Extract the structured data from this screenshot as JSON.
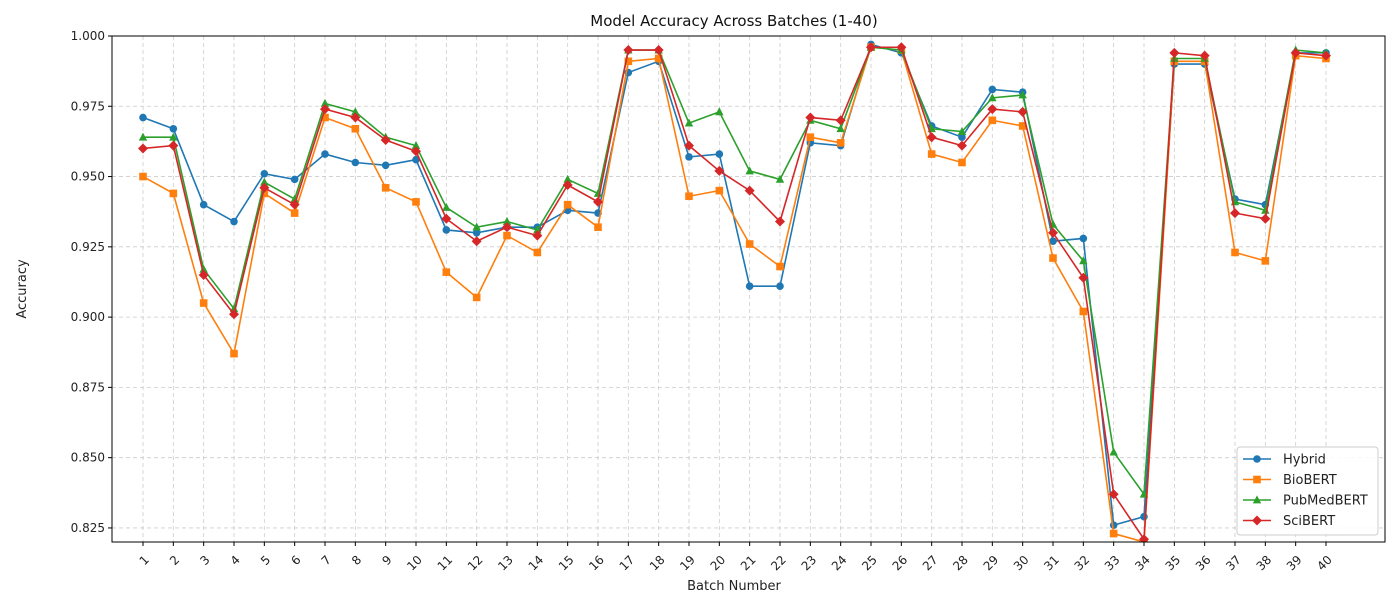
{
  "chart_data": {
    "type": "line",
    "title": "Model Accuracy Across Batches (1-40)",
    "xlabel": "Batch Number",
    "ylabel": "Accuracy",
    "categories": [
      "1",
      "2",
      "3",
      "4",
      "5",
      "6",
      "7",
      "8",
      "9",
      "10",
      "11",
      "12",
      "13",
      "14",
      "15",
      "16",
      "17",
      "18",
      "19",
      "20",
      "21",
      "22",
      "23",
      "24",
      "25",
      "26",
      "27",
      "28",
      "29",
      "30",
      "31",
      "32",
      "33",
      "34",
      "35",
      "36",
      "37",
      "38",
      "39",
      "40"
    ],
    "ylim": [
      0.82,
      1.0
    ],
    "yticks": [
      "0.825",
      "0.850",
      "0.875",
      "0.900",
      "0.925",
      "0.950",
      "0.975",
      "1.000"
    ],
    "grid": true,
    "legend_position": "lower-right",
    "series": [
      {
        "name": "Hybrid",
        "color": "#1f77b4",
        "marker": "circle",
        "values": [
          0.971,
          0.967,
          0.94,
          0.934,
          0.951,
          0.949,
          0.958,
          0.955,
          0.954,
          0.956,
          0.931,
          0.93,
          0.932,
          0.932,
          0.938,
          0.937,
          0.987,
          0.991,
          0.957,
          0.958,
          0.911,
          0.911,
          0.962,
          0.961,
          0.997,
          0.994,
          0.968,
          0.964,
          0.981,
          0.98,
          0.927,
          0.928,
          0.826,
          0.829,
          0.99,
          0.99,
          0.942,
          0.94,
          0.994,
          0.994
        ]
      },
      {
        "name": "BioBERT",
        "color": "#ff7f0e",
        "marker": "square",
        "values": [
          0.95,
          0.944,
          0.905,
          0.887,
          0.944,
          0.937,
          0.971,
          0.967,
          0.946,
          0.941,
          0.916,
          0.907,
          0.929,
          0.923,
          0.94,
          0.932,
          0.991,
          0.992,
          0.943,
          0.945,
          0.926,
          0.918,
          0.964,
          0.962,
          0.996,
          0.995,
          0.958,
          0.955,
          0.97,
          0.968,
          0.921,
          0.902,
          0.823,
          0.82,
          0.991,
          0.991,
          0.923,
          0.92,
          0.993,
          0.992
        ]
      },
      {
        "name": "PubMedBERT",
        "color": "#2ca02c",
        "marker": "triangle",
        "values": [
          0.964,
          0.964,
          0.917,
          0.903,
          0.948,
          0.942,
          0.976,
          0.973,
          0.964,
          0.961,
          0.939,
          0.932,
          0.934,
          0.931,
          0.949,
          0.944,
          0.995,
          0.995,
          0.969,
          0.973,
          0.952,
          0.949,
          0.97,
          0.967,
          0.996,
          0.995,
          0.967,
          0.966,
          0.978,
          0.979,
          0.933,
          0.92,
          0.852,
          0.837,
          0.992,
          0.992,
          0.941,
          0.938,
          0.995,
          0.994
        ]
      },
      {
        "name": "SciBERT",
        "color": "#d62728",
        "marker": "diamond",
        "values": [
          0.96,
          0.961,
          0.915,
          0.901,
          0.946,
          0.94,
          0.974,
          0.971,
          0.963,
          0.959,
          0.935,
          0.927,
          0.932,
          0.929,
          0.947,
          0.941,
          0.995,
          0.995,
          0.961,
          0.952,
          0.945,
          0.934,
          0.971,
          0.97,
          0.996,
          0.996,
          0.964,
          0.961,
          0.974,
          0.973,
          0.93,
          0.914,
          0.837,
          0.821,
          0.994,
          0.993,
          0.937,
          0.935,
          0.994,
          0.993
        ]
      }
    ]
  }
}
